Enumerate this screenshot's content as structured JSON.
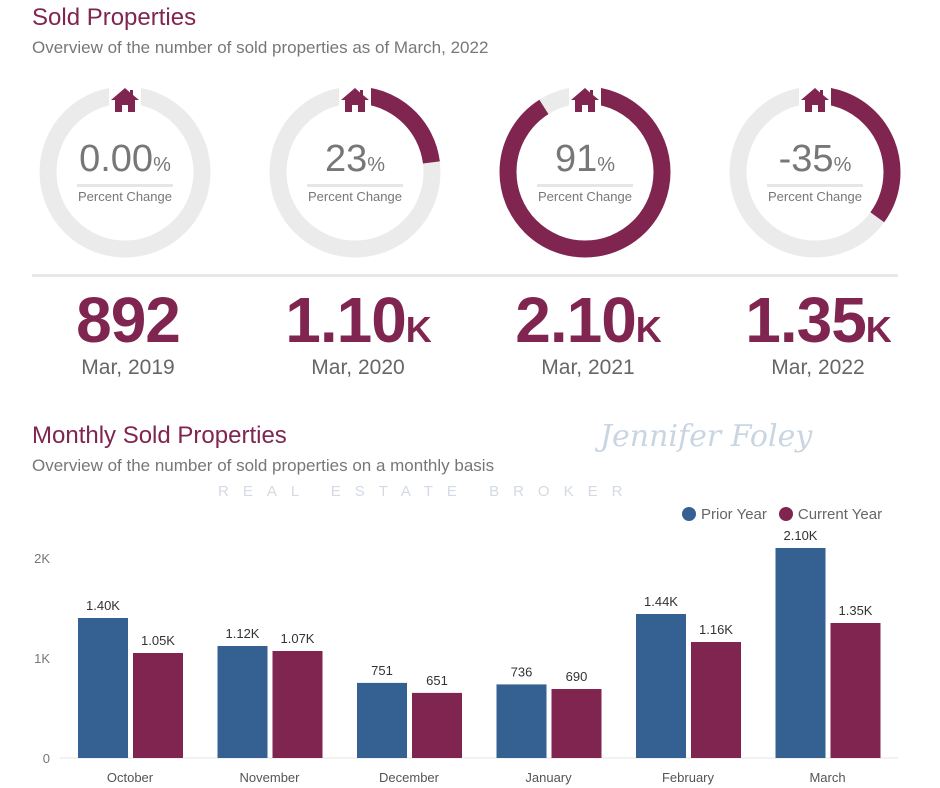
{
  "header": {
    "title": "Sold Properties",
    "subtitle": "Overview of the number of sold properties as of March, 2022"
  },
  "kpis": [
    {
      "value": "0.00",
      "unit": "%",
      "label": "Percent Change",
      "fraction": 0.0,
      "icon": "house-icon"
    },
    {
      "value": "23",
      "unit": "%",
      "label": "Percent Change",
      "fraction": 0.23,
      "icon": "house-icon"
    },
    {
      "value": "91",
      "unit": "%",
      "label": "Percent Change",
      "fraction": 0.91,
      "icon": "house-icon"
    },
    {
      "value": "-35",
      "unit": "%",
      "label": "Percent Change",
      "fraction": 0.35,
      "icon": "house-icon"
    }
  ],
  "totals": [
    {
      "value": "892",
      "suffix": "",
      "period": "Mar, 2019"
    },
    {
      "value": "1.10",
      "suffix": "K",
      "period": "Mar, 2020"
    },
    {
      "value": "2.10",
      "suffix": "K",
      "period": "Mar, 2021"
    },
    {
      "value": "1.35",
      "suffix": "K",
      "period": "Mar, 2022"
    }
  ],
  "watermark": {
    "name": "Jennifer Foley",
    "tagline": "REAL ESTATE BROKER"
  },
  "monthly": {
    "title": "Monthly Sold Properties",
    "subtitle": "Overview of the number of sold properties on a monthly basis"
  },
  "colors": {
    "accent": "#7f2550",
    "prior": "#356092",
    "track": "#ebebeb"
  },
  "chart_data": {
    "type": "bar",
    "categories": [
      "October",
      "November",
      "December",
      "January",
      "February",
      "March"
    ],
    "series": [
      {
        "name": "Prior Year",
        "color": "#356092",
        "values": [
          1400,
          1120,
          751,
          736,
          1440,
          2100
        ],
        "labels": [
          "1.40K",
          "1.12K",
          "751",
          "736",
          "1.44K",
          "2.10K"
        ]
      },
      {
        "name": "Current Year",
        "color": "#7f2550",
        "values": [
          1050,
          1070,
          651,
          690,
          1160,
          1350
        ],
        "labels": [
          "1.05K",
          "1.07K",
          "651",
          "690",
          "1.16K",
          "1.35K"
        ]
      }
    ],
    "yticks": [
      "0",
      "1K",
      "2K"
    ],
    "ylim": [
      0,
      2000
    ],
    "legend": "top-right"
  }
}
